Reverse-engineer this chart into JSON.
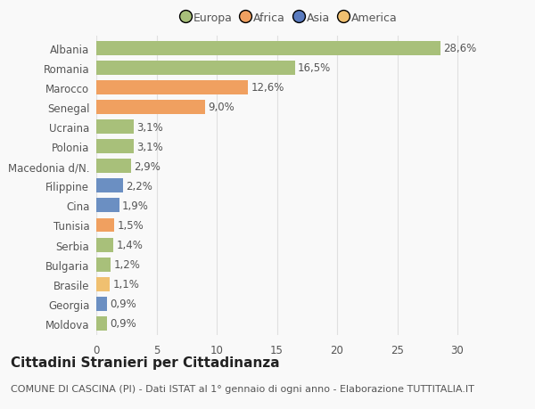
{
  "categories": [
    "Moldova",
    "Georgia",
    "Brasile",
    "Bulgaria",
    "Serbia",
    "Tunisia",
    "Cina",
    "Filippine",
    "Macedonia d/N.",
    "Polonia",
    "Ucraina",
    "Senegal",
    "Marocco",
    "Romania",
    "Albania"
  ],
  "values": [
    0.9,
    0.9,
    1.1,
    1.2,
    1.4,
    1.5,
    1.9,
    2.2,
    2.9,
    3.1,
    3.1,
    9.0,
    12.6,
    16.5,
    28.6
  ],
  "labels": [
    "0,9%",
    "0,9%",
    "1,1%",
    "1,2%",
    "1,4%",
    "1,5%",
    "1,9%",
    "2,2%",
    "2,9%",
    "3,1%",
    "3,1%",
    "9,0%",
    "12,6%",
    "16,5%",
    "28,6%"
  ],
  "colors": [
    "#a8c07a",
    "#6b8fc2",
    "#f0c070",
    "#a8c07a",
    "#a8c07a",
    "#f0a060",
    "#6b8fc2",
    "#6b8fc2",
    "#a8c07a",
    "#a8c07a",
    "#a8c07a",
    "#f0a060",
    "#f0a060",
    "#a8c07a",
    "#a8c07a"
  ],
  "legend": {
    "Europa": "#a8c07a",
    "Africa": "#f0a060",
    "Asia": "#5a7bbf",
    "America": "#f0c070"
  },
  "title": "Cittadini Stranieri per Cittadinanza",
  "subtitle": "COMUNE DI CASCINA (PI) - Dati ISTAT al 1° gennaio di ogni anno - Elaborazione TUTTITALIA.IT",
  "xlim": [
    0,
    32
  ],
  "xticks": [
    0,
    5,
    10,
    15,
    20,
    25,
    30
  ],
  "background_color": "#f9f9f9",
  "grid_color": "#e0e0e0",
  "bar_height": 0.72,
  "text_color": "#555555",
  "label_fontsize": 8.5,
  "tick_fontsize": 8.5,
  "title_fontsize": 11,
  "subtitle_fontsize": 8
}
